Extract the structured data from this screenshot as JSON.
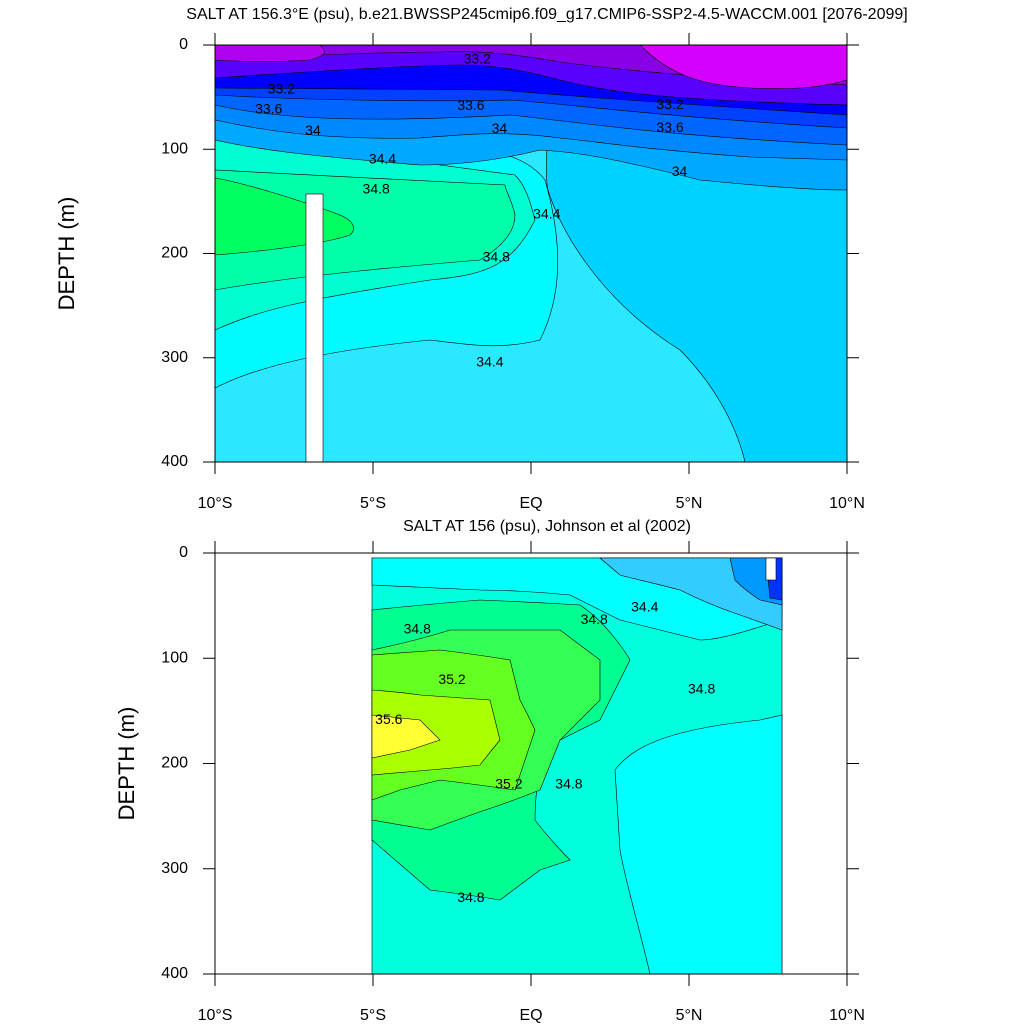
{
  "chart_data": [
    {
      "type": "contour",
      "title": "SALT AT 156.3°E (psu), b.e21.BWSSP245cmip6.f09_g17.CMIP6-SSP2-4.5-WACCM.001 [2076-2099]",
      "y_label": "DEPTH (m)",
      "xlim": [
        -10,
        10
      ],
      "xticks": [
        {
          "value": -10,
          "label": "10°S"
        },
        {
          "value": -5,
          "label": "5°S"
        },
        {
          "value": 0,
          "label": "EQ"
        },
        {
          "value": 5,
          "label": "5°N"
        },
        {
          "value": 10,
          "label": "10°N"
        }
      ],
      "ylim": [
        400,
        0
      ],
      "yticks": [
        0,
        100,
        200,
        300,
        400
      ],
      "contour_labels": [
        {
          "x": -1.7,
          "depth": 14,
          "value": 33.2
        },
        {
          "x": -7.9,
          "depth": 43,
          "value": 33.2
        },
        {
          "x": -8.3,
          "depth": 62,
          "value": 33.6
        },
        {
          "x": -1.9,
          "depth": 59,
          "value": 33.6
        },
        {
          "x": -6.9,
          "depth": 83,
          "value": 34
        },
        {
          "x": -1.0,
          "depth": 81,
          "value": 34
        },
        {
          "x": 4.4,
          "depth": 58,
          "value": 33.2
        },
        {
          "x": 4.4,
          "depth": 80,
          "value": 33.6
        },
        {
          "x": 4.7,
          "depth": 122,
          "value": 34
        },
        {
          "x": -4.7,
          "depth": 110,
          "value": 34.4
        },
        {
          "x": -4.9,
          "depth": 139,
          "value": 34.8
        },
        {
          "x": 0.5,
          "depth": 163,
          "value": 34.4
        },
        {
          "x": -1.1,
          "depth": 204,
          "value": 34.8
        },
        {
          "x": -1.3,
          "depth": 305,
          "value": 34.4
        }
      ]
    },
    {
      "type": "contour",
      "title": "SALT AT 156 (psu), Johnson et al (2002)",
      "y_label": "DEPTH (m)",
      "xlim": [
        -10,
        10
      ],
      "xticks": [
        {
          "value": -10,
          "label": "10°S"
        },
        {
          "value": -5,
          "label": "5°S"
        },
        {
          "value": 0,
          "label": "EQ"
        },
        {
          "value": 5,
          "label": "5°N"
        },
        {
          "value": 10,
          "label": "10°N"
        }
      ],
      "ylim": [
        400,
        0
      ],
      "yticks": [
        0,
        100,
        200,
        300,
        400
      ],
      "contour_labels": [
        {
          "x": -3.6,
          "depth": 73,
          "value": 34.8
        },
        {
          "x": 2.0,
          "depth": 64,
          "value": 34.8
        },
        {
          "x": 3.6,
          "depth": 52,
          "value": 34.4
        },
        {
          "x": -2.5,
          "depth": 121,
          "value": 35.2
        },
        {
          "x": 5.4,
          "depth": 130,
          "value": 34.8
        },
        {
          "x": -4.5,
          "depth": 159,
          "value": 35.6
        },
        {
          "x": -0.7,
          "depth": 220,
          "value": 35.2
        },
        {
          "x": 1.2,
          "depth": 220,
          "value": 34.8
        },
        {
          "x": -1.9,
          "depth": 328,
          "value": 34.8
        }
      ]
    }
  ]
}
